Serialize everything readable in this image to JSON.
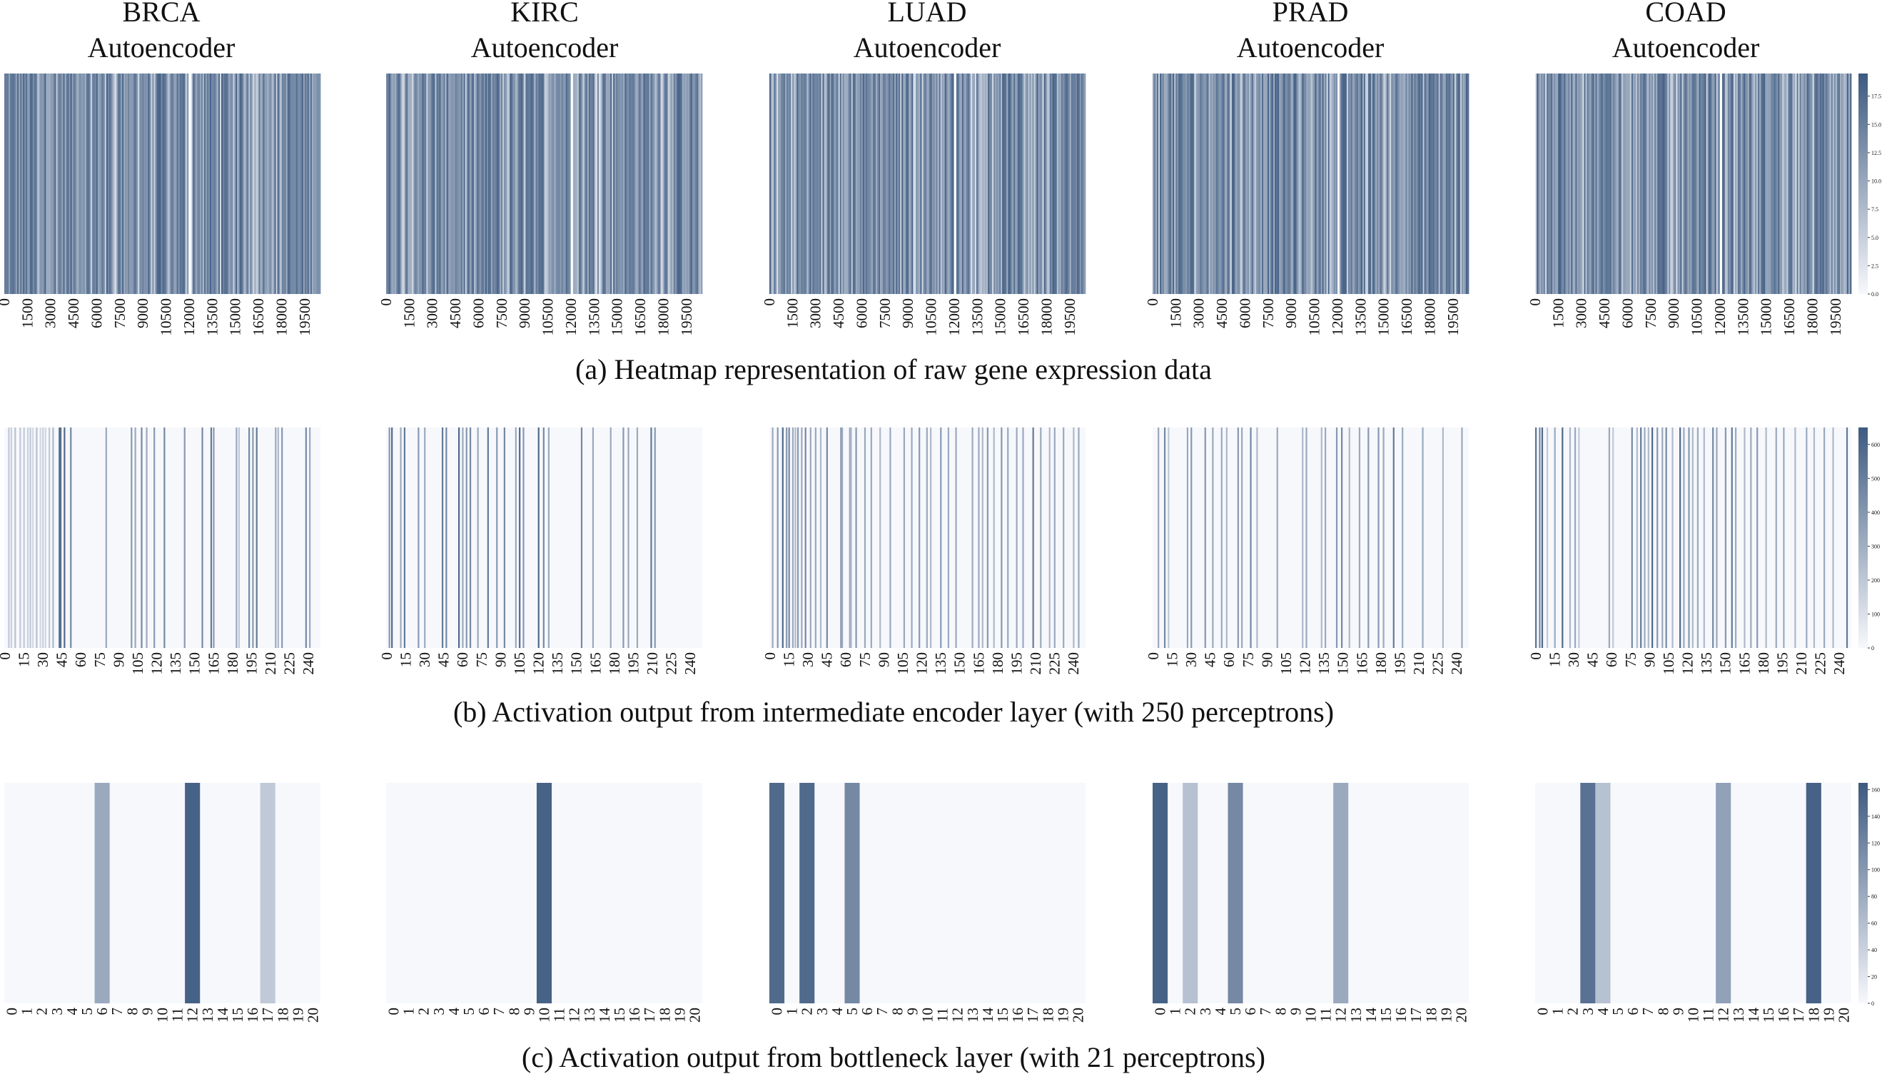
{
  "figure": {
    "panel_titles": [
      [
        "BRCA",
        "Autoencoder"
      ],
      [
        "KIRC",
        "Autoencoder"
      ],
      [
        "LUAD",
        "Autoencoder"
      ],
      [
        "PRAD",
        "Autoencoder"
      ],
      [
        "COAD",
        "Autoencoder"
      ]
    ],
    "captions": [
      "(a) Heatmap representation of raw gene expression data",
      "(b) Activation output from intermediate encoder layer (with 250 perceptrons)",
      "(c) Activation output from bottleneck layer (with 21 perceptrons)"
    ],
    "colors": {
      "low": "#f7f8fc",
      "high": "#3d5a80"
    }
  },
  "chart_data": [
    {
      "type": "heatmap",
      "row_label": "(a) Heatmap representation of raw gene expression data",
      "panels": [
        "BRCA Autoencoder",
        "KIRC Autoencoder",
        "LUAD Autoencoder",
        "PRAD Autoencoder",
        "COAD Autoencoder"
      ],
      "x_ticks": [
        "0",
        "1500",
        "3000",
        "4500",
        "6000",
        "7500",
        "9000",
        "10500",
        "12000",
        "13500",
        "15000",
        "16500",
        "18000",
        "19500"
      ],
      "x_range": [
        0,
        20531
      ],
      "colorbar": {
        "ticks": [
          "0.0",
          "2.5",
          "5.0",
          "7.5",
          "10.0",
          "12.5",
          "15.0",
          "17.5"
        ],
        "range": [
          0,
          19.5
        ]
      },
      "dense_columns": true
    },
    {
      "type": "heatmap",
      "row_label": "(b) Activation output from intermediate encoder layer (with 250 perceptrons)",
      "panels": [
        "BRCA Autoencoder",
        "KIRC Autoencoder",
        "LUAD Autoencoder",
        "PRAD Autoencoder",
        "COAD Autoencoder"
      ],
      "x_ticks": [
        "0",
        "15",
        "30",
        "45",
        "60",
        "75",
        "90",
        "105",
        "120",
        "135",
        "150",
        "165",
        "180",
        "195",
        "210",
        "225",
        "240"
      ],
      "x_range": [
        0,
        250
      ],
      "colorbar": {
        "ticks": [
          "0",
          "100",
          "200",
          "300",
          "400",
          "500",
          "600"
        ],
        "range": [
          0,
          650
        ]
      },
      "active_columns": {
        "BRCA": [
          [
            3,
            0.3
          ],
          [
            5,
            0.25
          ],
          [
            8,
            0.35
          ],
          [
            12,
            0.3
          ],
          [
            15,
            0.3
          ],
          [
            18,
            0.25
          ],
          [
            20,
            0.3
          ],
          [
            22,
            0.2
          ],
          [
            25,
            0.35
          ],
          [
            28,
            0.2
          ],
          [
            30,
            0.25
          ],
          [
            32,
            0.2
          ],
          [
            35,
            0.3
          ],
          [
            38,
            0.4
          ],
          [
            43,
            0.9
          ],
          [
            44,
            0.85
          ],
          [
            47,
            0.9
          ],
          [
            52,
            0.7
          ],
          [
            80,
            0.5
          ],
          [
            100,
            0.6
          ],
          [
            103,
            0.5
          ],
          [
            108,
            0.7
          ],
          [
            112,
            0.5
          ],
          [
            118,
            0.6
          ],
          [
            126,
            0.7
          ],
          [
            142,
            0.6
          ],
          [
            156,
            0.7
          ],
          [
            163,
            0.8
          ],
          [
            165,
            0.6
          ],
          [
            183,
            0.5
          ],
          [
            185,
            0.3
          ],
          [
            193,
            0.7
          ],
          [
            196,
            0.6
          ],
          [
            199,
            0.8
          ],
          [
            214,
            0.5
          ],
          [
            216,
            0.4
          ],
          [
            219,
            0.6
          ],
          [
            238,
            0.7
          ],
          [
            241,
            0.5
          ]
        ],
        "KIRC": [
          [
            2,
            0.6
          ],
          [
            4,
            0.9
          ],
          [
            11,
            0.5
          ],
          [
            14,
            0.8
          ],
          [
            25,
            0.6
          ],
          [
            30,
            0.5
          ],
          [
            44,
            0.8
          ],
          [
            47,
            0.7
          ],
          [
            57,
            0.9
          ],
          [
            60,
            0.5
          ],
          [
            63,
            0.6
          ],
          [
            66,
            0.7
          ],
          [
            72,
            0.5
          ],
          [
            80,
            0.8
          ],
          [
            87,
            0.6
          ],
          [
            93,
            0.7
          ],
          [
            102,
            0.5
          ],
          [
            105,
            0.9
          ],
          [
            108,
            0.6
          ],
          [
            120,
            0.9
          ],
          [
            124,
            0.7
          ],
          [
            128,
            0.5
          ],
          [
            154,
            0.7
          ],
          [
            163,
            0.5
          ],
          [
            177,
            0.5
          ],
          [
            187,
            0.6
          ],
          [
            191,
            0.5
          ],
          [
            198,
            0.5
          ],
          [
            209,
            0.8
          ],
          [
            212,
            0.6
          ]
        ],
        "LUAD": [
          [
            2,
            0.5
          ],
          [
            6,
            0.6
          ],
          [
            10,
            0.9
          ],
          [
            13,
            0.6
          ],
          [
            15,
            0.7
          ],
          [
            18,
            0.5
          ],
          [
            20,
            0.4
          ],
          [
            22,
            0.6
          ],
          [
            25,
            0.5
          ],
          [
            28,
            0.7
          ],
          [
            32,
            0.5
          ],
          [
            36,
            0.5
          ],
          [
            40,
            0.4
          ],
          [
            45,
            0.7
          ],
          [
            56,
            0.6
          ],
          [
            57,
            0.5
          ],
          [
            63,
            0.5
          ],
          [
            64,
            0.4
          ],
          [
            68,
            0.6
          ],
          [
            75,
            0.5
          ],
          [
            80,
            0.5
          ],
          [
            87,
            0.4
          ],
          [
            95,
            0.5
          ],
          [
            106,
            0.5
          ],
          [
            112,
            0.5
          ],
          [
            118,
            0.6
          ],
          [
            124,
            0.5
          ],
          [
            127,
            0.4
          ],
          [
            135,
            0.6
          ],
          [
            141,
            0.5
          ],
          [
            147,
            0.5
          ],
          [
            160,
            0.5
          ],
          [
            165,
            0.5
          ],
          [
            168,
            0.4
          ],
          [
            172,
            0.6
          ],
          [
            177,
            0.4
          ],
          [
            183,
            0.6
          ],
          [
            188,
            0.5
          ],
          [
            195,
            0.5
          ],
          [
            200,
            0.5
          ],
          [
            208,
            0.8
          ],
          [
            214,
            0.5
          ],
          [
            221,
            0.4
          ],
          [
            225,
            0.5
          ],
          [
            232,
            0.5
          ],
          [
            240,
            0.4
          ],
          [
            244,
            0.5
          ]
        ],
        "PRAD": [
          [
            4,
            0.5
          ],
          [
            9,
            0.7
          ],
          [
            12,
            0.3
          ],
          [
            27,
            0.5
          ],
          [
            30,
            0.6
          ],
          [
            41,
            0.6
          ],
          [
            47,
            0.5
          ],
          [
            54,
            0.5
          ],
          [
            58,
            0.4
          ],
          [
            67,
            0.6
          ],
          [
            70,
            0.5
          ],
          [
            77,
            0.7
          ],
          [
            82,
            0.4
          ],
          [
            98,
            0.5
          ],
          [
            118,
            0.4
          ],
          [
            121,
            0.5
          ],
          [
            133,
            0.4
          ],
          [
            136,
            0.5
          ],
          [
            145,
            0.6
          ],
          [
            149,
            0.7
          ],
          [
            155,
            0.4
          ],
          [
            163,
            0.5
          ],
          [
            170,
            0.6
          ],
          [
            178,
            0.6
          ],
          [
            182,
            0.5
          ],
          [
            190,
            0.8
          ],
          [
            197,
            0.5
          ],
          [
            213,
            0.5
          ],
          [
            229,
            0.4
          ],
          [
            244,
            0.5
          ]
        ],
        "COAD": [
          [
            0,
            0.85
          ],
          [
            3,
            0.7
          ],
          [
            5,
            0.9
          ],
          [
            9,
            0.3
          ],
          [
            15,
            0.5
          ],
          [
            21,
            0.9
          ],
          [
            27,
            0.4
          ],
          [
            31,
            0.5
          ],
          [
            34,
            0.3
          ],
          [
            58,
            0.5
          ],
          [
            61,
            0.3
          ],
          [
            76,
            0.7
          ],
          [
            80,
            0.4
          ],
          [
            83,
            0.8
          ],
          [
            86,
            0.5
          ],
          [
            89,
            0.4
          ],
          [
            92,
            0.9
          ],
          [
            96,
            0.6
          ],
          [
            100,
            0.5
          ],
          [
            103,
            0.7
          ],
          [
            108,
            0.4
          ],
          [
            114,
            0.9
          ],
          [
            117,
            0.5
          ],
          [
            121,
            0.6
          ],
          [
            124,
            0.4
          ],
          [
            128,
            0.5
          ],
          [
            133,
            0.4
          ],
          [
            140,
            0.7
          ],
          [
            143,
            0.5
          ],
          [
            150,
            0.6
          ],
          [
            155,
            0.8
          ],
          [
            158,
            0.5
          ],
          [
            165,
            0.4
          ],
          [
            170,
            0.5
          ],
          [
            175,
            0.6
          ],
          [
            182,
            0.4
          ],
          [
            190,
            0.5
          ],
          [
            196,
            0.5
          ],
          [
            205,
            0.4
          ],
          [
            214,
            0.5
          ],
          [
            220,
            0.4
          ],
          [
            228,
            0.5
          ],
          [
            235,
            0.4
          ],
          [
            246,
            0.8
          ]
        ]
      }
    },
    {
      "type": "heatmap",
      "row_label": "(c) Activation output from bottleneck layer (with 21 perceptrons)",
      "panels": [
        "BRCA Autoencoder",
        "KIRC Autoencoder",
        "LUAD Autoencoder",
        "PRAD Autoencoder",
        "COAD Autoencoder"
      ],
      "x_ticks": [
        "0",
        "1",
        "2",
        "3",
        "4",
        "5",
        "6",
        "7",
        "8",
        "9",
        "10",
        "11",
        "12",
        "13",
        "14",
        "15",
        "16",
        "17",
        "18",
        "19",
        "20"
      ],
      "x_range": [
        0,
        21
      ],
      "colorbar": {
        "ticks": [
          "0",
          "20",
          "40",
          "60",
          "80",
          "100",
          "120",
          "140",
          "160"
        ],
        "range": [
          0,
          165
        ]
      },
      "active_columns": {
        "BRCA": [
          [
            6,
            0.5
          ],
          [
            12,
            0.95
          ],
          [
            17,
            0.3
          ]
        ],
        "KIRC": [
          [
            10,
            0.95
          ]
        ],
        "LUAD": [
          [
            0,
            0.9
          ],
          [
            2,
            0.9
          ],
          [
            5,
            0.7
          ]
        ],
        "PRAD": [
          [
            0,
            0.95
          ],
          [
            2,
            0.35
          ],
          [
            5,
            0.7
          ],
          [
            12,
            0.5
          ]
        ],
        "COAD": [
          [
            3,
            0.85
          ],
          [
            4,
            0.35
          ],
          [
            12,
            0.55
          ],
          [
            18,
            0.95
          ]
        ]
      }
    }
  ]
}
